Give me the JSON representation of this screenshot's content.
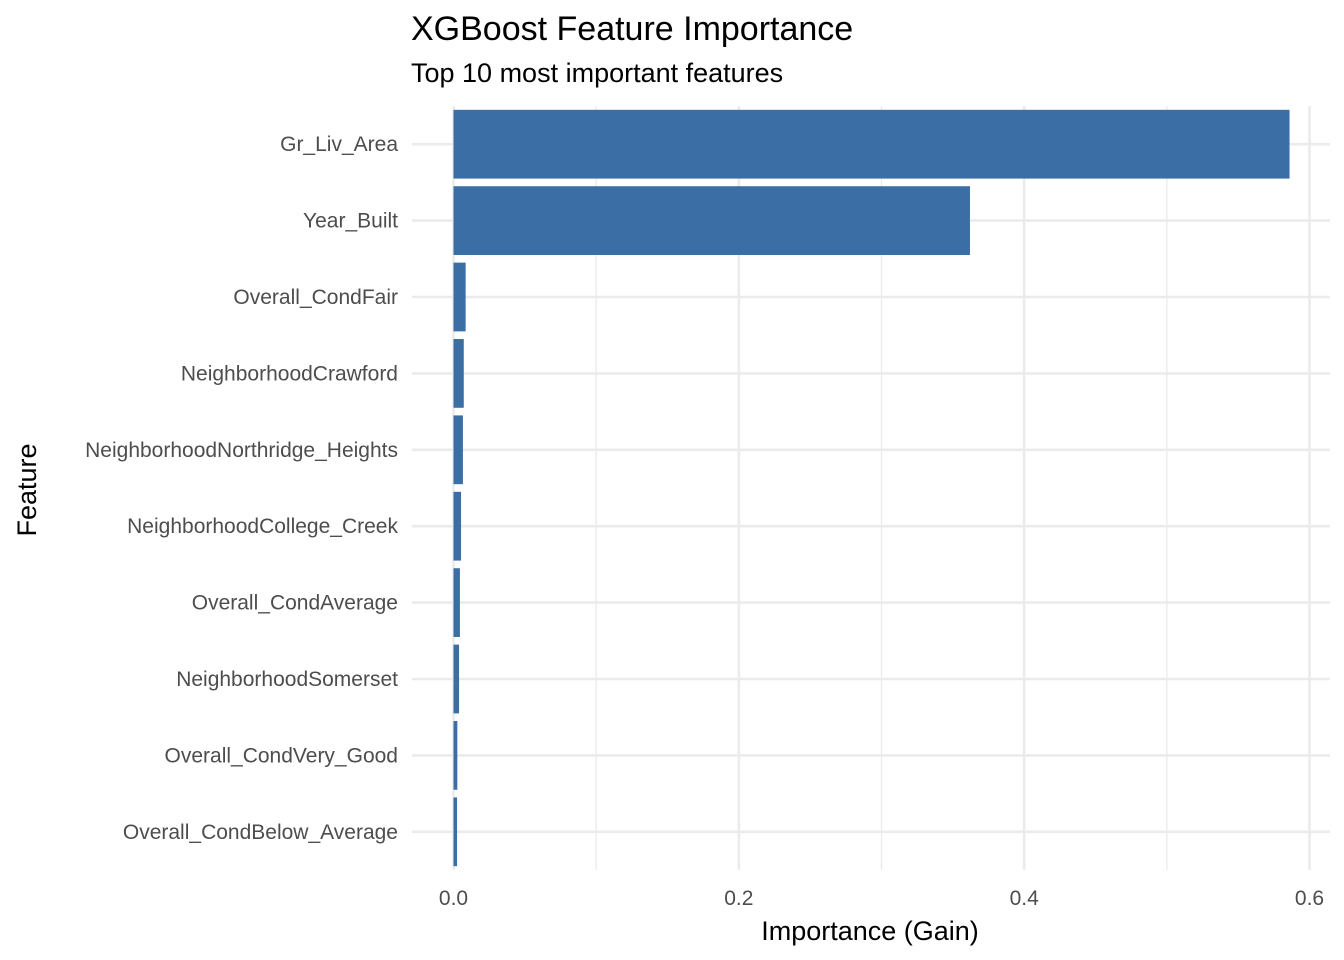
{
  "chart_data": {
    "type": "bar",
    "orientation": "horizontal",
    "title": "XGBoost Feature Importance",
    "subtitle": "Top 10 most important features",
    "xlabel": "Importance (Gain)",
    "ylabel": "Feature",
    "categories": [
      "Gr_Liv_Area",
      "Year_Built",
      "Overall_CondFair",
      "NeighborhoodCrawford",
      "NeighborhoodNorthridge_Heights",
      "NeighborhoodCollege_Creek",
      "Overall_CondAverage",
      "NeighborhoodSomerset",
      "Overall_CondVery_Good",
      "Overall_CondBelow_Average"
    ],
    "values": [
      0.586,
      0.362,
      0.0085,
      0.0072,
      0.0066,
      0.0053,
      0.0045,
      0.0039,
      0.0027,
      0.0025
    ],
    "xlim": [
      0,
      0.6
    ],
    "xticks": [
      0.0,
      0.2,
      0.4,
      0.6
    ],
    "xtick_labels": [
      "0.0",
      "0.2",
      "0.4",
      "0.6"
    ],
    "bar_color": "#3A6EA5",
    "grid": true,
    "legend": "none"
  }
}
